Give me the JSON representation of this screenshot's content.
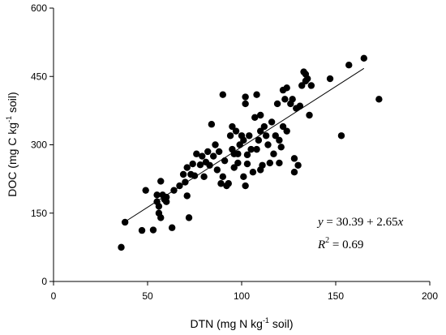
{
  "chart_data": {
    "type": "scatter",
    "xlabel": {
      "pre": "DTN (mg N kg",
      "sup": "-1",
      "post": " soil)"
    },
    "ylabel": {
      "pre": "DOC (mg C kg",
      "sup": "-1",
      "post": " soil)"
    },
    "xlim": [
      0,
      200
    ],
    "ylim": [
      0,
      600
    ],
    "xticks": [
      0,
      50,
      100,
      150,
      200
    ],
    "yticks": [
      0,
      150,
      300,
      450,
      600
    ],
    "grid": false,
    "trendline": {
      "intercept": 30.39,
      "slope": 2.65,
      "x_range": [
        38,
        165
      ]
    },
    "equation": {
      "lhs": "y",
      "rhs": " = 30.39 + 2.65",
      "xvar": "x"
    },
    "r2": {
      "label": "R",
      "sup": "2",
      "value": " = 0.69"
    },
    "points": [
      [
        36,
        75
      ],
      [
        38,
        130
      ],
      [
        47,
        112
      ],
      [
        49,
        200
      ],
      [
        53,
        113
      ],
      [
        55,
        190
      ],
      [
        55,
        175
      ],
      [
        56,
        165
      ],
      [
        56,
        150
      ],
      [
        57,
        140
      ],
      [
        57,
        220
      ],
      [
        58,
        190
      ],
      [
        59,
        180
      ],
      [
        60,
        185
      ],
      [
        60,
        175
      ],
      [
        63,
        118
      ],
      [
        64,
        200
      ],
      [
        67,
        210
      ],
      [
        69,
        235
      ],
      [
        70,
        218
      ],
      [
        71,
        250
      ],
      [
        71,
        188
      ],
      [
        72,
        140
      ],
      [
        73,
        235
      ],
      [
        74,
        258
      ],
      [
        75,
        232
      ],
      [
        76,
        280
      ],
      [
        78,
        256
      ],
      [
        79,
        275
      ],
      [
        80,
        230
      ],
      [
        81,
        262
      ],
      [
        82,
        285
      ],
      [
        83,
        255
      ],
      [
        84,
        345
      ],
      [
        85,
        275
      ],
      [
        86,
        300
      ],
      [
        87,
        245
      ],
      [
        88,
        285
      ],
      [
        89,
        215
      ],
      [
        90,
        410
      ],
      [
        90,
        230
      ],
      [
        91,
        265
      ],
      [
        92,
        210
      ],
      [
        93,
        215
      ],
      [
        94,
        320
      ],
      [
        95,
        290
      ],
      [
        95,
        340
      ],
      [
        96,
        280
      ],
      [
        96,
        250
      ],
      [
        97,
        330
      ],
      [
        98,
        280
      ],
      [
        98,
        260
      ],
      [
        99,
        300
      ],
      [
        100,
        320
      ],
      [
        101,
        310
      ],
      [
        101,
        230
      ],
      [
        102,
        210
      ],
      [
        102,
        405
      ],
      [
        102,
        390
      ],
      [
        103,
        258
      ],
      [
        103,
        278
      ],
      [
        104,
        320
      ],
      [
        105,
        290
      ],
      [
        106,
        240
      ],
      [
        107,
        360
      ],
      [
        108,
        290
      ],
      [
        108,
        410
      ],
      [
        109,
        310
      ],
      [
        110,
        365
      ],
      [
        110,
        245
      ],
      [
        110,
        330
      ],
      [
        111,
        255
      ],
      [
        112,
        340
      ],
      [
        113,
        320
      ],
      [
        114,
        300
      ],
      [
        115,
        260
      ],
      [
        116,
        350
      ],
      [
        117,
        280
      ],
      [
        118,
        320
      ],
      [
        119,
        390
      ],
      [
        120,
        260
      ],
      [
        120,
        310
      ],
      [
        121,
        295
      ],
      [
        122,
        340
      ],
      [
        122,
        420
      ],
      [
        123,
        400
      ],
      [
        124,
        425
      ],
      [
        124,
        330
      ],
      [
        126,
        390
      ],
      [
        127,
        400
      ],
      [
        128,
        240
      ],
      [
        128,
        270
      ],
      [
        129,
        380
      ],
      [
        130,
        255
      ],
      [
        131,
        385
      ],
      [
        132,
        430
      ],
      [
        133,
        460
      ],
      [
        134,
        440
      ],
      [
        134,
        455
      ],
      [
        135,
        445
      ],
      [
        136,
        365
      ],
      [
        137,
        430
      ],
      [
        147,
        445
      ],
      [
        153,
        320
      ],
      [
        157,
        475
      ],
      [
        165,
        490
      ],
      [
        173,
        400
      ]
    ]
  }
}
